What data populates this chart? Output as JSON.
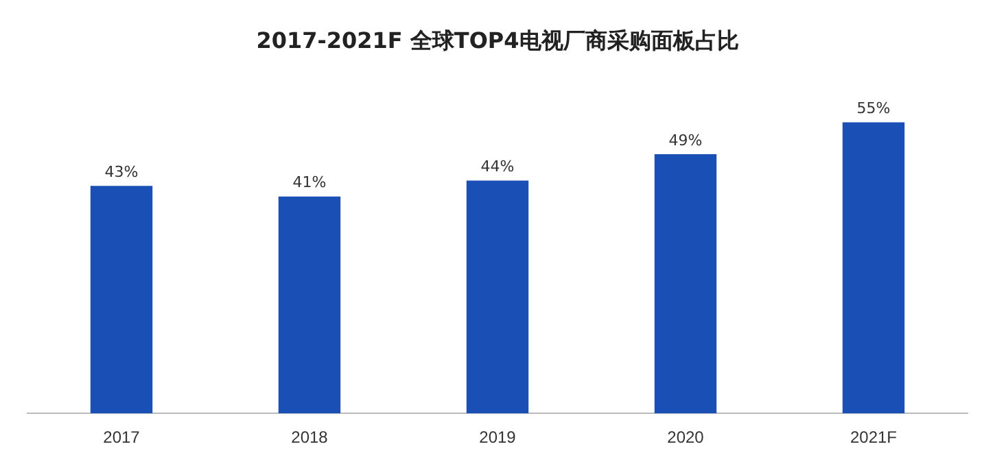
{
  "chart_data": {
    "type": "bar",
    "title": "2017-2021F  全球TOP4电视厂商采购面板占比",
    "categories": [
      "2017",
      "2018",
      "2019",
      "2020",
      "2021F"
    ],
    "values": [
      43,
      41,
      44,
      49,
      55
    ],
    "value_labels": [
      "43%",
      "41%",
      "44%",
      "49%",
      "55%"
    ],
    "color": "#1a50b5",
    "grid": false,
    "legend": false
  }
}
